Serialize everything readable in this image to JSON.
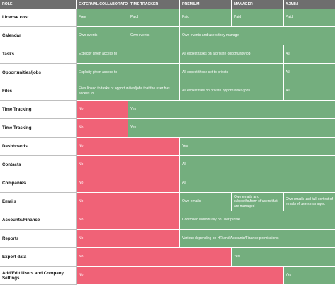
{
  "columns": [
    "ROLE",
    "EXTERNAL COLLABORATOR",
    "TIME TRACKER",
    "PREMIUM",
    "MANAGER",
    "ADMIN"
  ],
  "colors": {
    "header": "#6e6e6e",
    "green": "#74ae7e",
    "red": "#f06277"
  },
  "rows": [
    {
      "label": "License cost",
      "cells": [
        {
          "text": "Free",
          "status": "green"
        },
        {
          "text": "Paid",
          "status": "green"
        },
        {
          "text": "Paid",
          "status": "green"
        },
        {
          "text": "Paid",
          "status": "green"
        },
        {
          "text": "Paid",
          "status": "green"
        }
      ]
    },
    {
      "label": "Calendar",
      "cells": [
        {
          "text": "Own events",
          "status": "green"
        },
        {
          "text": "Own events",
          "status": "green"
        },
        {
          "text": "Own events and users they manage",
          "status": "green"
        }
      ]
    },
    {
      "label": "Tasks",
      "cells": [
        {
          "text": "Explicity given access to",
          "status": "green"
        },
        {
          "text": "All expect tasks on a private opportunity/job",
          "status": "green"
        },
        {
          "text": "All",
          "status": "green"
        }
      ]
    },
    {
      "label": "Opportunities/jobs",
      "cells": [
        {
          "text": "Explicity given access to",
          "status": "green"
        },
        {
          "text": "All expect those set to private",
          "status": "green"
        },
        {
          "text": "All",
          "status": "green"
        }
      ]
    },
    {
      "label": "Files",
      "cells": [
        {
          "text": "Files linked to tasks or opportunities/jobs that the user has access to",
          "status": "green"
        },
        {
          "text": "All expect files on private opportunities/jobs",
          "status": "green"
        },
        {
          "text": "All",
          "status": "green"
        }
      ]
    },
    {
      "label": "Time Tracking",
      "cells": [
        {
          "text": "No",
          "status": "red"
        },
        {
          "text": "Yes",
          "status": "green"
        }
      ]
    },
    {
      "label": "Time Tracking",
      "cells": [
        {
          "text": "No",
          "status": "red"
        },
        {
          "text": "Yes",
          "status": "green"
        }
      ]
    },
    {
      "label": "Dashboards",
      "cells": [
        {
          "text": "No",
          "status": "red"
        },
        {
          "text": "Yes",
          "status": "green"
        }
      ]
    },
    {
      "label": "Contacts",
      "cells": [
        {
          "text": "No",
          "status": "red"
        },
        {
          "text": "All",
          "status": "green"
        }
      ]
    },
    {
      "label": "Companies",
      "cells": [
        {
          "text": "No",
          "status": "red"
        },
        {
          "text": "All",
          "status": "green"
        }
      ]
    },
    {
      "label": "Emails",
      "cells": [
        {
          "text": "No",
          "status": "red"
        },
        {
          "text": "Own emails",
          "status": "green"
        },
        {
          "text": "Own emails and subject/to/from of users that are managed",
          "status": "green"
        },
        {
          "text": "Own emails and full content of emails of users managed",
          "status": "green"
        }
      ]
    },
    {
      "label": "Accounts/Finance",
      "cells": [
        {
          "text": "No",
          "status": "red"
        },
        {
          "text": "Controlled individually on user profile",
          "status": "green"
        }
      ]
    },
    {
      "label": "Reports",
      "cells": [
        {
          "text": "No",
          "status": "red"
        },
        {
          "text": "Various depending on HR and Accounts/Finance permissions",
          "status": "green"
        }
      ]
    },
    {
      "label": "Export data",
      "cells": [
        {
          "text": "No",
          "status": "red"
        },
        {
          "text": "Yes",
          "status": "green"
        }
      ]
    },
    {
      "label": "Add/Edit Users and Company Settings",
      "cells": [
        {
          "text": "No",
          "status": "red"
        },
        {
          "text": "Yes",
          "status": "green"
        }
      ]
    }
  ]
}
